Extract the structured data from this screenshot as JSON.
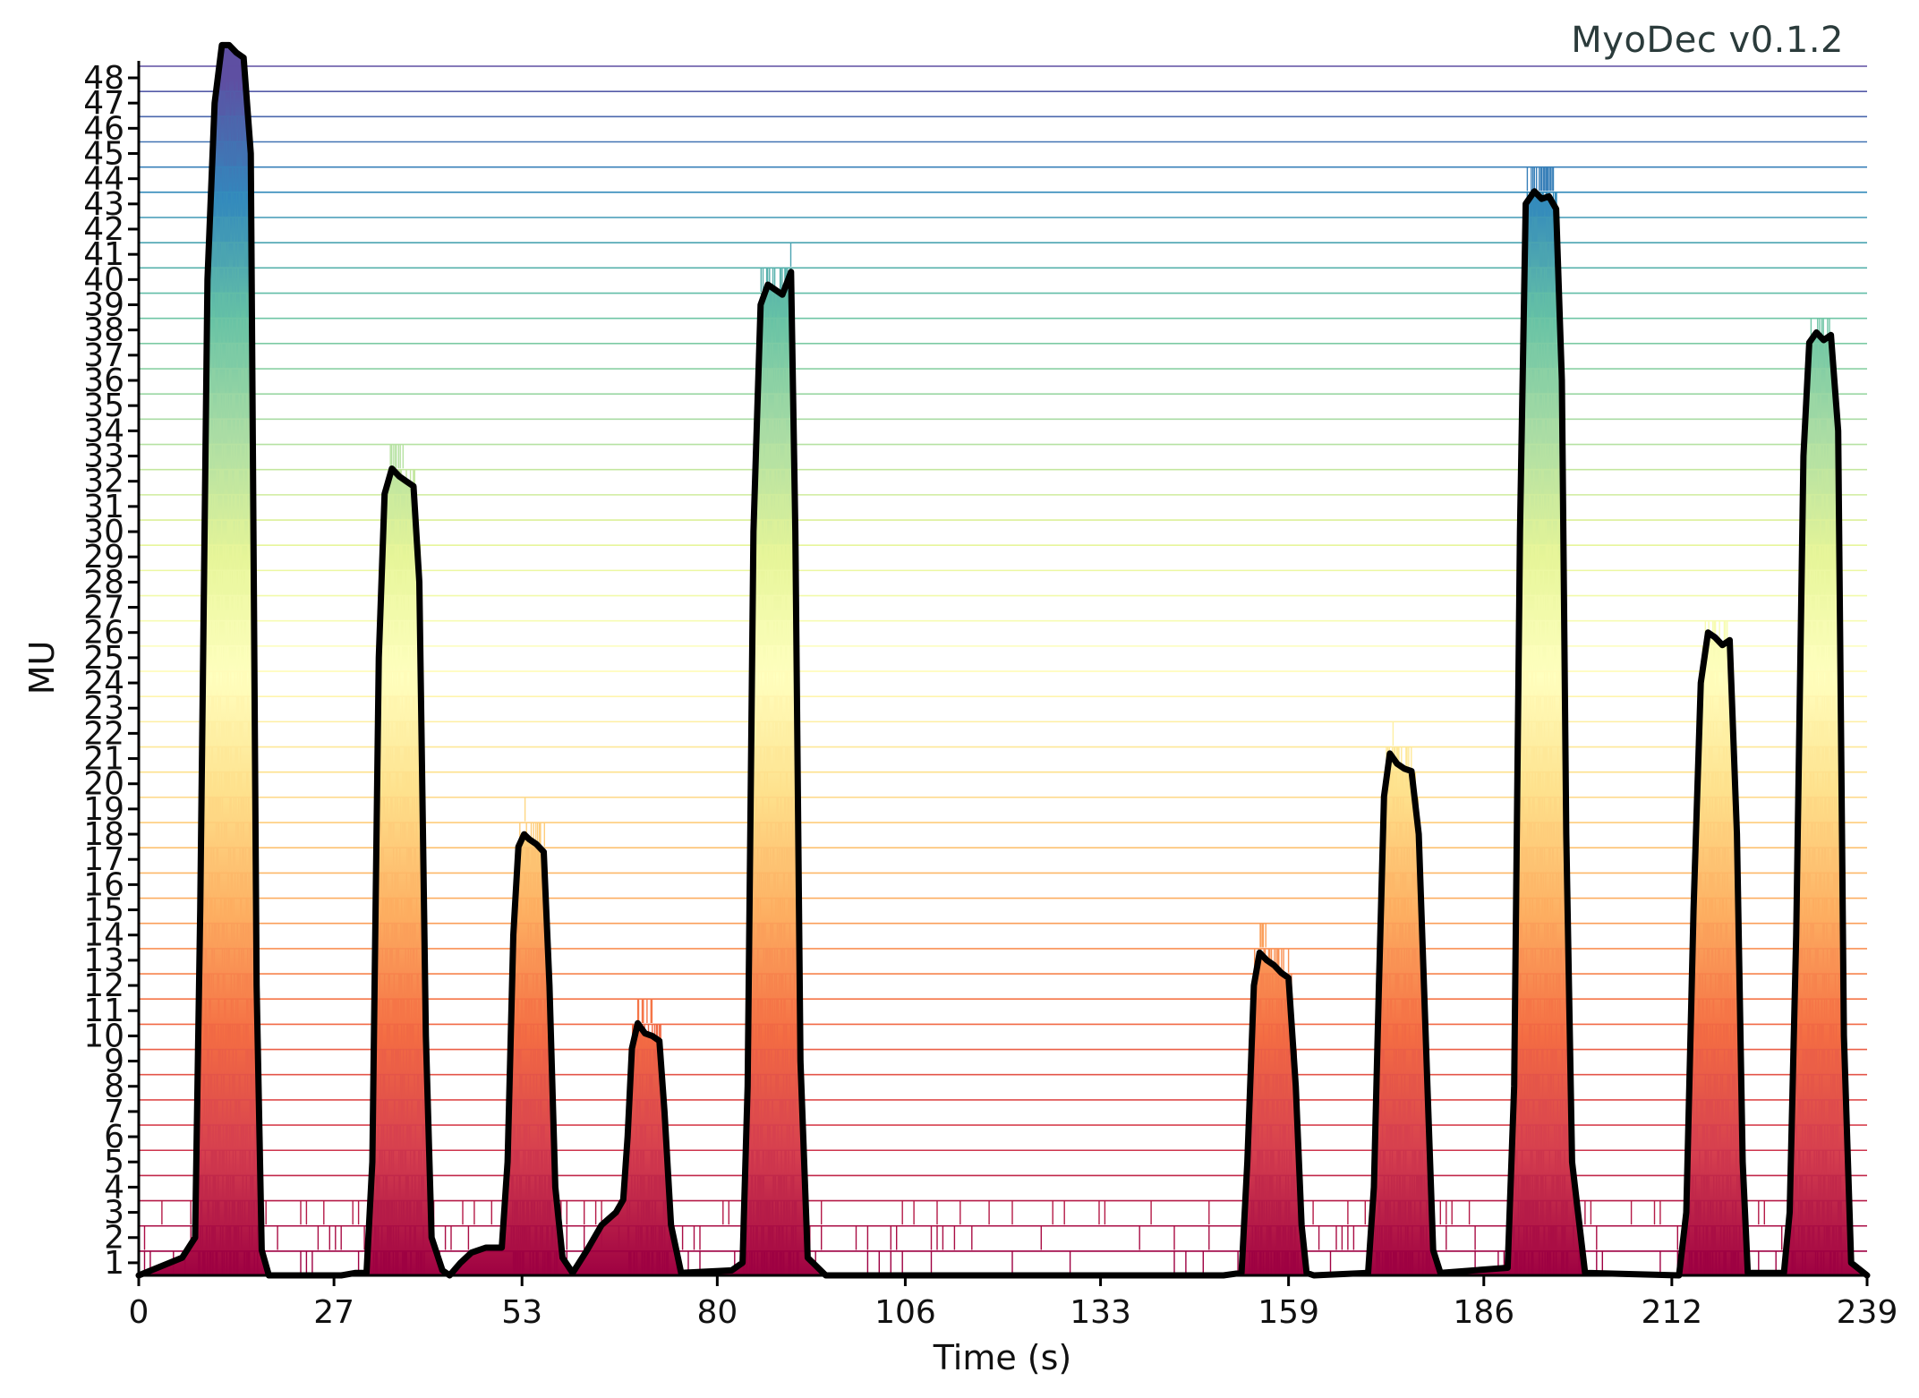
{
  "watermark": "MyoDec v0.1.2",
  "chart_data": {
    "type": "raster",
    "xlabel": "Time (s)",
    "ylabel": "MU",
    "xlim": [
      0,
      239
    ],
    "ylim": [
      0.5,
      48.5
    ],
    "x_ticks": [
      0,
      27,
      53,
      80,
      106,
      133,
      159,
      186,
      212,
      239
    ],
    "y_ticks": [
      1,
      2,
      3,
      4,
      5,
      6,
      7,
      8,
      9,
      10,
      11,
      12,
      13,
      14,
      15,
      16,
      17,
      18,
      19,
      20,
      21,
      22,
      23,
      24,
      25,
      26,
      27,
      28,
      29,
      30,
      31,
      32,
      33,
      34,
      35,
      36,
      37,
      38,
      39,
      40,
      41,
      42,
      43,
      44,
      45,
      46,
      47,
      48
    ],
    "colormap": [
      "#9e0142",
      "#d53e4f",
      "#f46d43",
      "#fdae61",
      "#fee08b",
      "#ffffbf",
      "#e6f598",
      "#abdda4",
      "#66c2a5",
      "#3288bd",
      "#5e4fa2"
    ],
    "unit_count": 48,
    "contraction_windows": [
      {
        "start": 8.0,
        "end": 16.5
      },
      {
        "start": 32.5,
        "end": 39.5
      },
      {
        "start": 51.5,
        "end": 58.0
      },
      {
        "start": 67.5,
        "end": 73.5
      },
      {
        "start": 83.5,
        "end": 91.0
      },
      {
        "start": 153.5,
        "end": 161.0
      },
      {
        "start": 171.0,
        "end": 178.5
      },
      {
        "start": 190.0,
        "end": 197.5
      },
      {
        "start": 214.0,
        "end": 221.5
      },
      {
        "start": 228.0,
        "end": 235.5
      }
    ],
    "force_curve": {
      "name": "",
      "color": "#000000",
      "x": [
        0,
        6,
        7.8,
        8.5,
        9.5,
        10.5,
        11.5,
        12.5,
        13.5,
        14.5,
        15.5,
        16.3,
        17,
        18,
        28,
        30,
        31.5,
        32.3,
        33.2,
        34,
        35,
        36,
        37,
        38,
        38.8,
        39.7,
        40.5,
        42,
        43,
        44.5,
        46,
        48,
        50.2,
        51,
        51.8,
        52.5,
        53.3,
        54,
        55,
        56,
        56.8,
        57.6,
        58.6,
        60,
        62,
        64,
        66,
        67,
        67.6,
        68.2,
        69,
        70,
        71,
        72,
        72.7,
        73.6,
        75,
        82,
        83.5,
        84.2,
        85,
        86,
        87,
        88,
        89,
        90.2,
        90.8,
        91.5,
        92.5,
        95,
        100,
        150,
        152.5,
        153.3,
        154.2,
        155,
        156,
        157,
        158,
        159,
        160,
        160.8,
        161.5,
        162.5,
        170,
        170.8,
        171.5,
        172.2,
        173,
        174,
        175,
        176,
        177,
        178.2,
        179,
        180,
        189.3,
        190.2,
        191,
        191.8,
        193,
        194,
        195,
        196,
        196.8,
        197.4,
        198.2,
        200,
        213,
        214,
        215,
        216,
        217,
        218,
        219,
        220,
        221,
        221.8,
        222.5,
        227.5,
        228.3,
        229.2,
        230.2,
        231,
        232,
        233,
        234,
        235,
        235.8,
        236.8,
        239
      ],
      "y": [
        0.5,
        1.2,
        2.0,
        15.0,
        40.0,
        47.0,
        49.3,
        49.3,
        49.0,
        48.8,
        45.0,
        12.0,
        1.5,
        0.5,
        0.5,
        0.6,
        0.6,
        5.0,
        25.0,
        31.5,
        32.5,
        32.2,
        32.0,
        31.8,
        28.0,
        10.0,
        2.0,
        0.7,
        0.5,
        1.0,
        1.4,
        1.6,
        1.6,
        5.0,
        14.0,
        17.5,
        18.0,
        17.8,
        17.6,
        17.3,
        12.0,
        4.0,
        1.2,
        0.6,
        1.5,
        2.5,
        3.0,
        3.5,
        6.0,
        9.5,
        10.5,
        10.1,
        10.0,
        9.8,
        7.0,
        2.5,
        0.6,
        0.7,
        1.0,
        8.0,
        30.0,
        39.0,
        39.8,
        39.6,
        39.4,
        40.3,
        30.0,
        9.0,
        1.2,
        0.5,
        0.5,
        0.5,
        0.6,
        5.0,
        12.0,
        13.3,
        13.0,
        12.8,
        12.5,
        12.3,
        8.0,
        2.5,
        0.6,
        0.5,
        0.6,
        4.0,
        12.0,
        19.5,
        21.2,
        20.8,
        20.6,
        20.5,
        18.0,
        8.0,
        1.5,
        0.6,
        0.8,
        8.0,
        30.0,
        43.0,
        43.5,
        43.2,
        43.3,
        42.8,
        36.0,
        18.0,
        5.0,
        0.6,
        0.5,
        3.0,
        15.0,
        24.0,
        26.0,
        25.8,
        25.5,
        25.7,
        18.0,
        5.0,
        0.6,
        0.6,
        3.0,
        14.0,
        33.0,
        37.5,
        37.9,
        37.6,
        37.8,
        34.0,
        10.0,
        1.0,
        0.5
      ]
    }
  }
}
